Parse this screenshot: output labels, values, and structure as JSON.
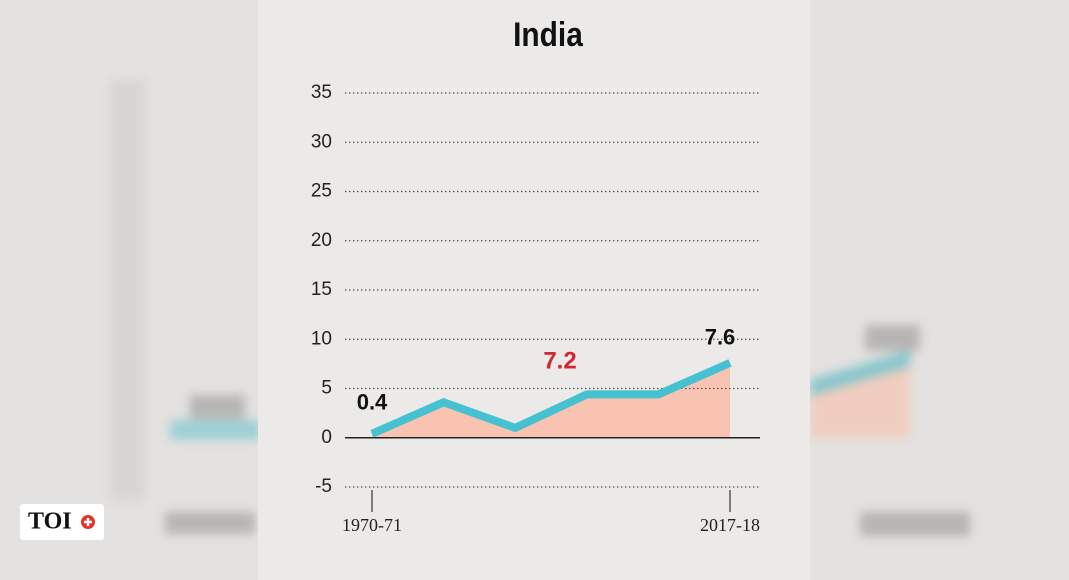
{
  "chart_data": {
    "type": "line",
    "title": "India",
    "categories": [
      "1970-71",
      null,
      null,
      null,
      null,
      "2017-18"
    ],
    "values": [
      0.4,
      3.6,
      1.0,
      4.4,
      4.4,
      7.6
    ],
    "color": "#45c1d1",
    "area_color": "#f8c4b1",
    "ylim": [
      -5,
      35
    ],
    "yticks": [
      -5,
      0,
      5,
      10,
      15,
      20,
      25,
      30,
      35
    ],
    "grid": true,
    "annotations": [
      {
        "text": "7.2",
        "color": "#d0282c"
      }
    ]
  },
  "logo": "TOI"
}
